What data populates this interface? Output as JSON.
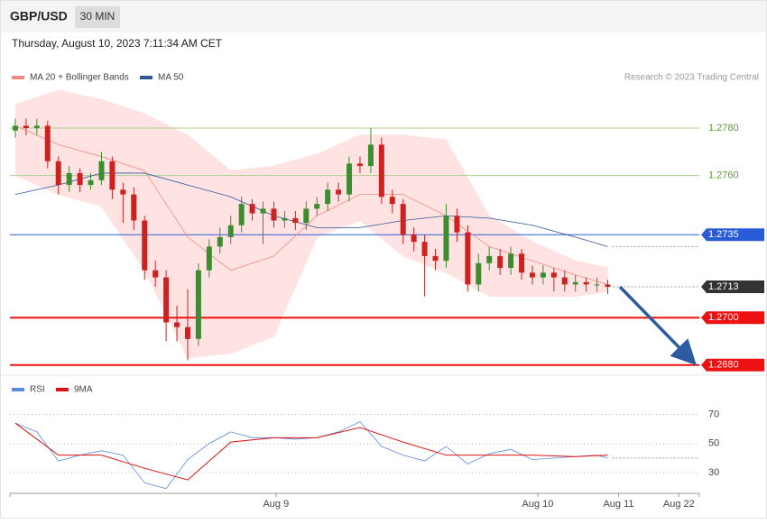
{
  "header": {
    "symbol": "GBP/USD",
    "timeframe": "30 MIN",
    "timestamp": "Thursday, August 10, 2023 7:11:34 AM CET",
    "credit": "Research © 2023 Trading Central"
  },
  "chart_data": [
    {
      "type": "candlestick",
      "xlim": [
        -0.5,
        63.5
      ],
      "ylim": [
        1.2678,
        1.2796
      ],
      "up_color": "#3c8d2f",
      "down_color": "#cc2222",
      "open": [
        1.2779,
        1.2781,
        1.278,
        1.2781,
        1.2766,
        1.2756,
        1.2761,
        1.2756,
        1.2758,
        1.2766,
        1.2754,
        1.2752,
        1.2741,
        1.272,
        1.2717,
        1.2698,
        1.2696,
        1.2691,
        1.272,
        1.273,
        1.2734,
        1.2739,
        1.2748,
        1.2744,
        1.2746,
        1.2741,
        1.2742,
        1.274,
        1.2746,
        1.2748,
        1.2754,
        1.2752,
        1.2765,
        1.2764,
        1.2773,
        1.2751,
        1.2748,
        1.2735,
        1.2732,
        1.2726,
        1.2724,
        1.2743,
        1.2736,
        1.2714,
        1.2723,
        1.2726,
        1.2721,
        1.2727,
        1.2719,
        1.2717,
        1.2719,
        1.2717,
        1.2714,
        1.2715,
        1.2714,
        1.2714
      ],
      "high": [
        1.2784,
        1.2784,
        1.2784,
        1.2783,
        1.2768,
        1.2764,
        1.2763,
        1.2761,
        1.277,
        1.2768,
        1.2757,
        1.2755,
        1.2743,
        1.2724,
        1.272,
        1.2705,
        1.2712,
        1.2723,
        1.2733,
        1.2738,
        1.2743,
        1.2751,
        1.275,
        1.2749,
        1.2749,
        1.2745,
        1.2745,
        1.2749,
        1.2751,
        1.2757,
        1.2757,
        1.2768,
        1.2768,
        1.278,
        1.2776,
        1.2754,
        1.275,
        1.2738,
        1.2735,
        1.2729,
        1.2748,
        1.2746,
        1.2739,
        1.2727,
        1.273,
        1.2729,
        1.273,
        1.2729,
        1.2722,
        1.2722,
        1.2721,
        1.272,
        1.2718,
        1.2717,
        1.2717,
        1.2716
      ],
      "low": [
        1.2776,
        1.2777,
        1.2777,
        1.2763,
        1.2752,
        1.2753,
        1.2753,
        1.2754,
        1.2756,
        1.275,
        1.274,
        1.2737,
        1.2716,
        1.2713,
        1.269,
        1.269,
        1.2682,
        1.2688,
        1.2717,
        1.2727,
        1.2731,
        1.2736,
        1.2741,
        1.2731,
        1.2738,
        1.2738,
        1.2737,
        1.2737,
        1.2743,
        1.2745,
        1.2749,
        1.2749,
        1.2761,
        1.2761,
        1.2748,
        1.2744,
        1.2731,
        1.2728,
        1.2709,
        1.272,
        1.2721,
        1.2732,
        1.2711,
        1.2711,
        1.272,
        1.2718,
        1.2718,
        1.2716,
        1.2714,
        1.2714,
        1.2711,
        1.2711,
        1.2711,
        1.2711,
        1.2711,
        1.271
      ],
      "close": [
        1.2781,
        1.278,
        1.2781,
        1.2766,
        1.2756,
        1.2761,
        1.2756,
        1.2758,
        1.2766,
        1.2754,
        1.2752,
        1.2741,
        1.272,
        1.2717,
        1.2698,
        1.2696,
        1.2691,
        1.272,
        1.273,
        1.2734,
        1.2739,
        1.2748,
        1.2744,
        1.2746,
        1.2741,
        1.2742,
        1.274,
        1.2746,
        1.2748,
        1.2754,
        1.2752,
        1.2765,
        1.2764,
        1.2773,
        1.2751,
        1.2748,
        1.2735,
        1.2732,
        1.2726,
        1.2724,
        1.2743,
        1.2736,
        1.2714,
        1.2723,
        1.2726,
        1.2721,
        1.2727,
        1.2719,
        1.2717,
        1.2719,
        1.2717,
        1.2714,
        1.2715,
        1.2714,
        1.2714,
        1.2713
      ],
      "series": [
        {
          "name": "MA 20 + Bollinger Bands",
          "color": "#f28b82",
          "band_color": "#ffe3e3",
          "x": [
            0,
            4,
            8,
            12,
            16,
            20,
            24,
            28,
            32,
            36,
            40,
            44,
            48,
            52,
            55
          ],
          "values": [
            1.2781,
            1.2773,
            1.2768,
            1.2762,
            1.2734,
            1.272,
            1.2726,
            1.2743,
            1.2752,
            1.2752,
            1.2743,
            1.273,
            1.2724,
            1.2718,
            1.2714
          ],
          "upper": [
            1.279,
            1.2796,
            1.2792,
            1.2786,
            1.2777,
            1.2762,
            1.2764,
            1.2769,
            1.2777,
            1.2777,
            1.2775,
            1.2743,
            1.2732,
            1.2724,
            1.2721
          ],
          "lower": [
            1.276,
            1.2752,
            1.2747,
            1.272,
            1.2683,
            1.2685,
            1.2692,
            1.2734,
            1.2741,
            1.2726,
            1.2719,
            1.2709,
            1.2709,
            1.2709,
            1.2711
          ]
        },
        {
          "name": "MA 50",
          "color": "#2f5597",
          "x": [
            0,
            4,
            8,
            12,
            16,
            20,
            24,
            28,
            32,
            36,
            40,
            44,
            48,
            52,
            55
          ],
          "values": [
            1.2752,
            1.2756,
            1.2761,
            1.2761,
            1.2756,
            1.2751,
            1.2743,
            1.2738,
            1.2738,
            1.2741,
            1.2743,
            1.2742,
            1.2739,
            1.2734,
            1.273
          ]
        }
      ],
      "levels": [
        {
          "value": 1.278,
          "label": "1.2780",
          "color": "#a8d08d",
          "text_color": "#5a9e2f",
          "box": false,
          "width": 1
        },
        {
          "value": 1.276,
          "label": "1.2760",
          "color": "#a8d08d",
          "text_color": "#5a9e2f",
          "box": false,
          "width": 1
        },
        {
          "value": 1.2735,
          "color": "#2a5bd7",
          "text_color": "#ffffff",
          "box": true,
          "width": 1
        },
        {
          "value": 1.2713,
          "color": "#333333",
          "text_color": "#ffffff",
          "box": true,
          "width": 0
        },
        {
          "value": 1.27,
          "label": "1.2700",
          "color": "#ee1111",
          "text_color": "#ffffff",
          "box": true,
          "width": 2
        },
        {
          "value": 1.268,
          "label": "1.2680",
          "color": "#ee1111",
          "text_color": "#ffffff",
          "box": true,
          "width": 2
        }
      ]
    },
    {
      "type": "line",
      "xlim": [
        -0.5,
        63.5
      ],
      "ylim": [
        17,
        79
      ],
      "yticks": [
        30,
        50,
        70
      ],
      "grid": true,
      "xticks": [
        {
          "value": 24.2,
          "label": "Aug 9"
        },
        {
          "value": 48.5,
          "label": "Aug 10"
        },
        {
          "value": 56,
          "label": "Aug 11"
        },
        {
          "value": 61.6,
          "label": "Aug 22"
        }
      ],
      "series": [
        {
          "name": "RSI",
          "color": "#5b8bd9",
          "x": [
            0,
            2,
            4,
            6,
            8,
            10,
            12,
            14,
            16,
            18,
            20,
            22,
            24,
            26,
            28,
            30,
            32,
            34,
            36,
            38,
            40,
            42,
            44,
            46,
            48,
            50,
            52,
            54,
            55
          ],
          "values": [
            64,
            58,
            38,
            42,
            45,
            42,
            23,
            19,
            39,
            50,
            58,
            54,
            54,
            53,
            54,
            58,
            65,
            48,
            42,
            38,
            48,
            36,
            43,
            46,
            39,
            40,
            41,
            42,
            40
          ]
        },
        {
          "name": "9MA",
          "color": "#dd1111",
          "x": [
            0,
            4,
            8,
            12,
            16,
            20,
            24,
            28,
            32,
            36,
            40,
            44,
            48,
            52,
            55
          ],
          "values": [
            64,
            42,
            42,
            33,
            25,
            51,
            54,
            54,
            61,
            51,
            42,
            42,
            42,
            41,
            42
          ]
        }
      ]
    }
  ]
}
